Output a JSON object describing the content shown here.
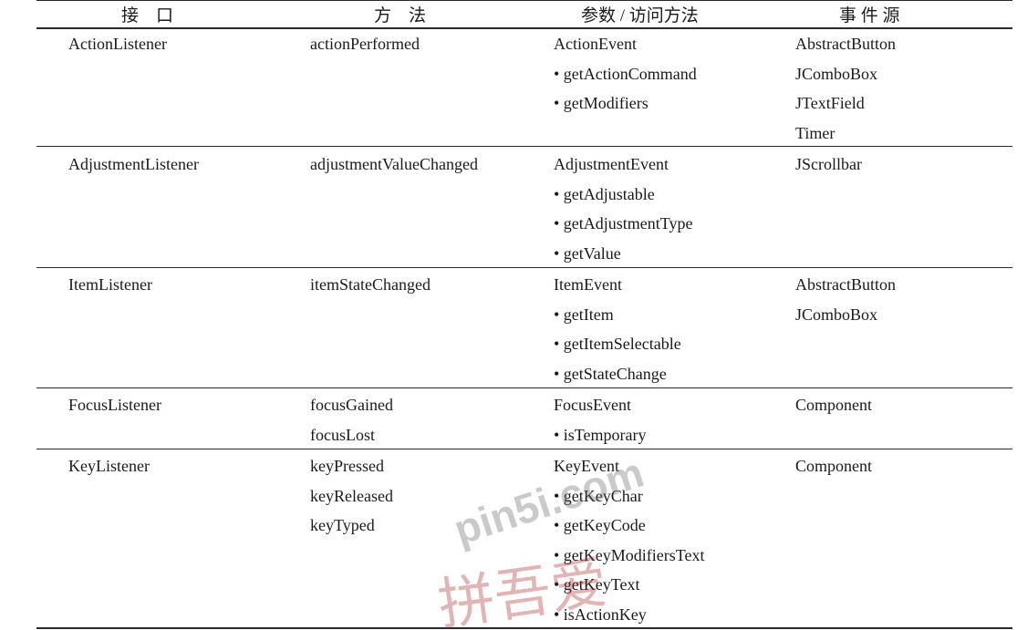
{
  "table": {
    "headers": [
      "接　口",
      "方　法",
      "参数 / 访问方法",
      "事 件 源"
    ],
    "rows": [
      {
        "interface": "ActionListener",
        "methods": [
          "actionPerformed"
        ],
        "params": [
          "ActionEvent",
          "• getActionCommand",
          "• getModifiers"
        ],
        "sources": [
          "AbstractButton",
          "JComboBox",
          "JTextField",
          "Timer"
        ]
      },
      {
        "interface": "AdjustmentListener",
        "methods": [
          "adjustmentValueChanged"
        ],
        "params": [
          "AdjustmentEvent",
          "• getAdjustable",
          "• getAdjustmentType",
          "• getValue"
        ],
        "sources": [
          "JScrollbar"
        ]
      },
      {
        "interface": "ItemListener",
        "methods": [
          "itemStateChanged"
        ],
        "params": [
          "ItemEvent",
          "• getItem",
          "• getItemSelectable",
          "• getStateChange"
        ],
        "sources": [
          "AbstractButton",
          "JComboBox"
        ]
      },
      {
        "interface": "FocusListener",
        "methods": [
          "focusGained",
          "focusLost"
        ],
        "params": [
          "FocusEvent",
          "• isTemporary"
        ],
        "sources": [
          "Component"
        ]
      },
      {
        "interface": "KeyListener",
        "methods": [
          "keyPressed",
          "keyReleased",
          "keyTyped"
        ],
        "params": [
          "KeyEvent",
          "• getKeyChar",
          "• getKeyCode",
          "• getKeyModifiersText",
          "• getKeyText",
          "• isActionKey"
        ],
        "sources": [
          "Component"
        ]
      }
    ]
  },
  "watermark": {
    "text": "pin5i.com",
    "subtext": "拼吾爱",
    "color": "#b02a2a"
  }
}
